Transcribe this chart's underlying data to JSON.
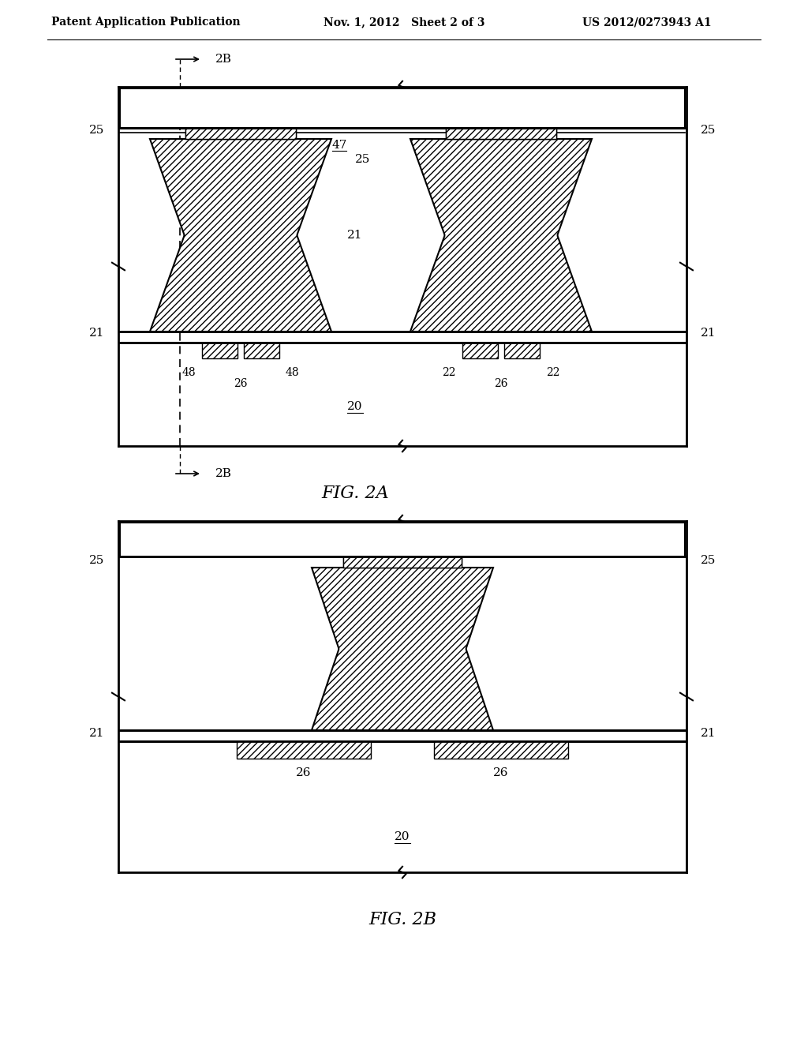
{
  "header_left": "Patent Application Publication",
  "header_mid": "Nov. 1, 2012   Sheet 2 of 3",
  "header_right": "US 2012/0273943 A1",
  "fig2a_label": "FIG. 2A",
  "fig2b_label": "FIG. 2B",
  "bg_color": "#ffffff"
}
